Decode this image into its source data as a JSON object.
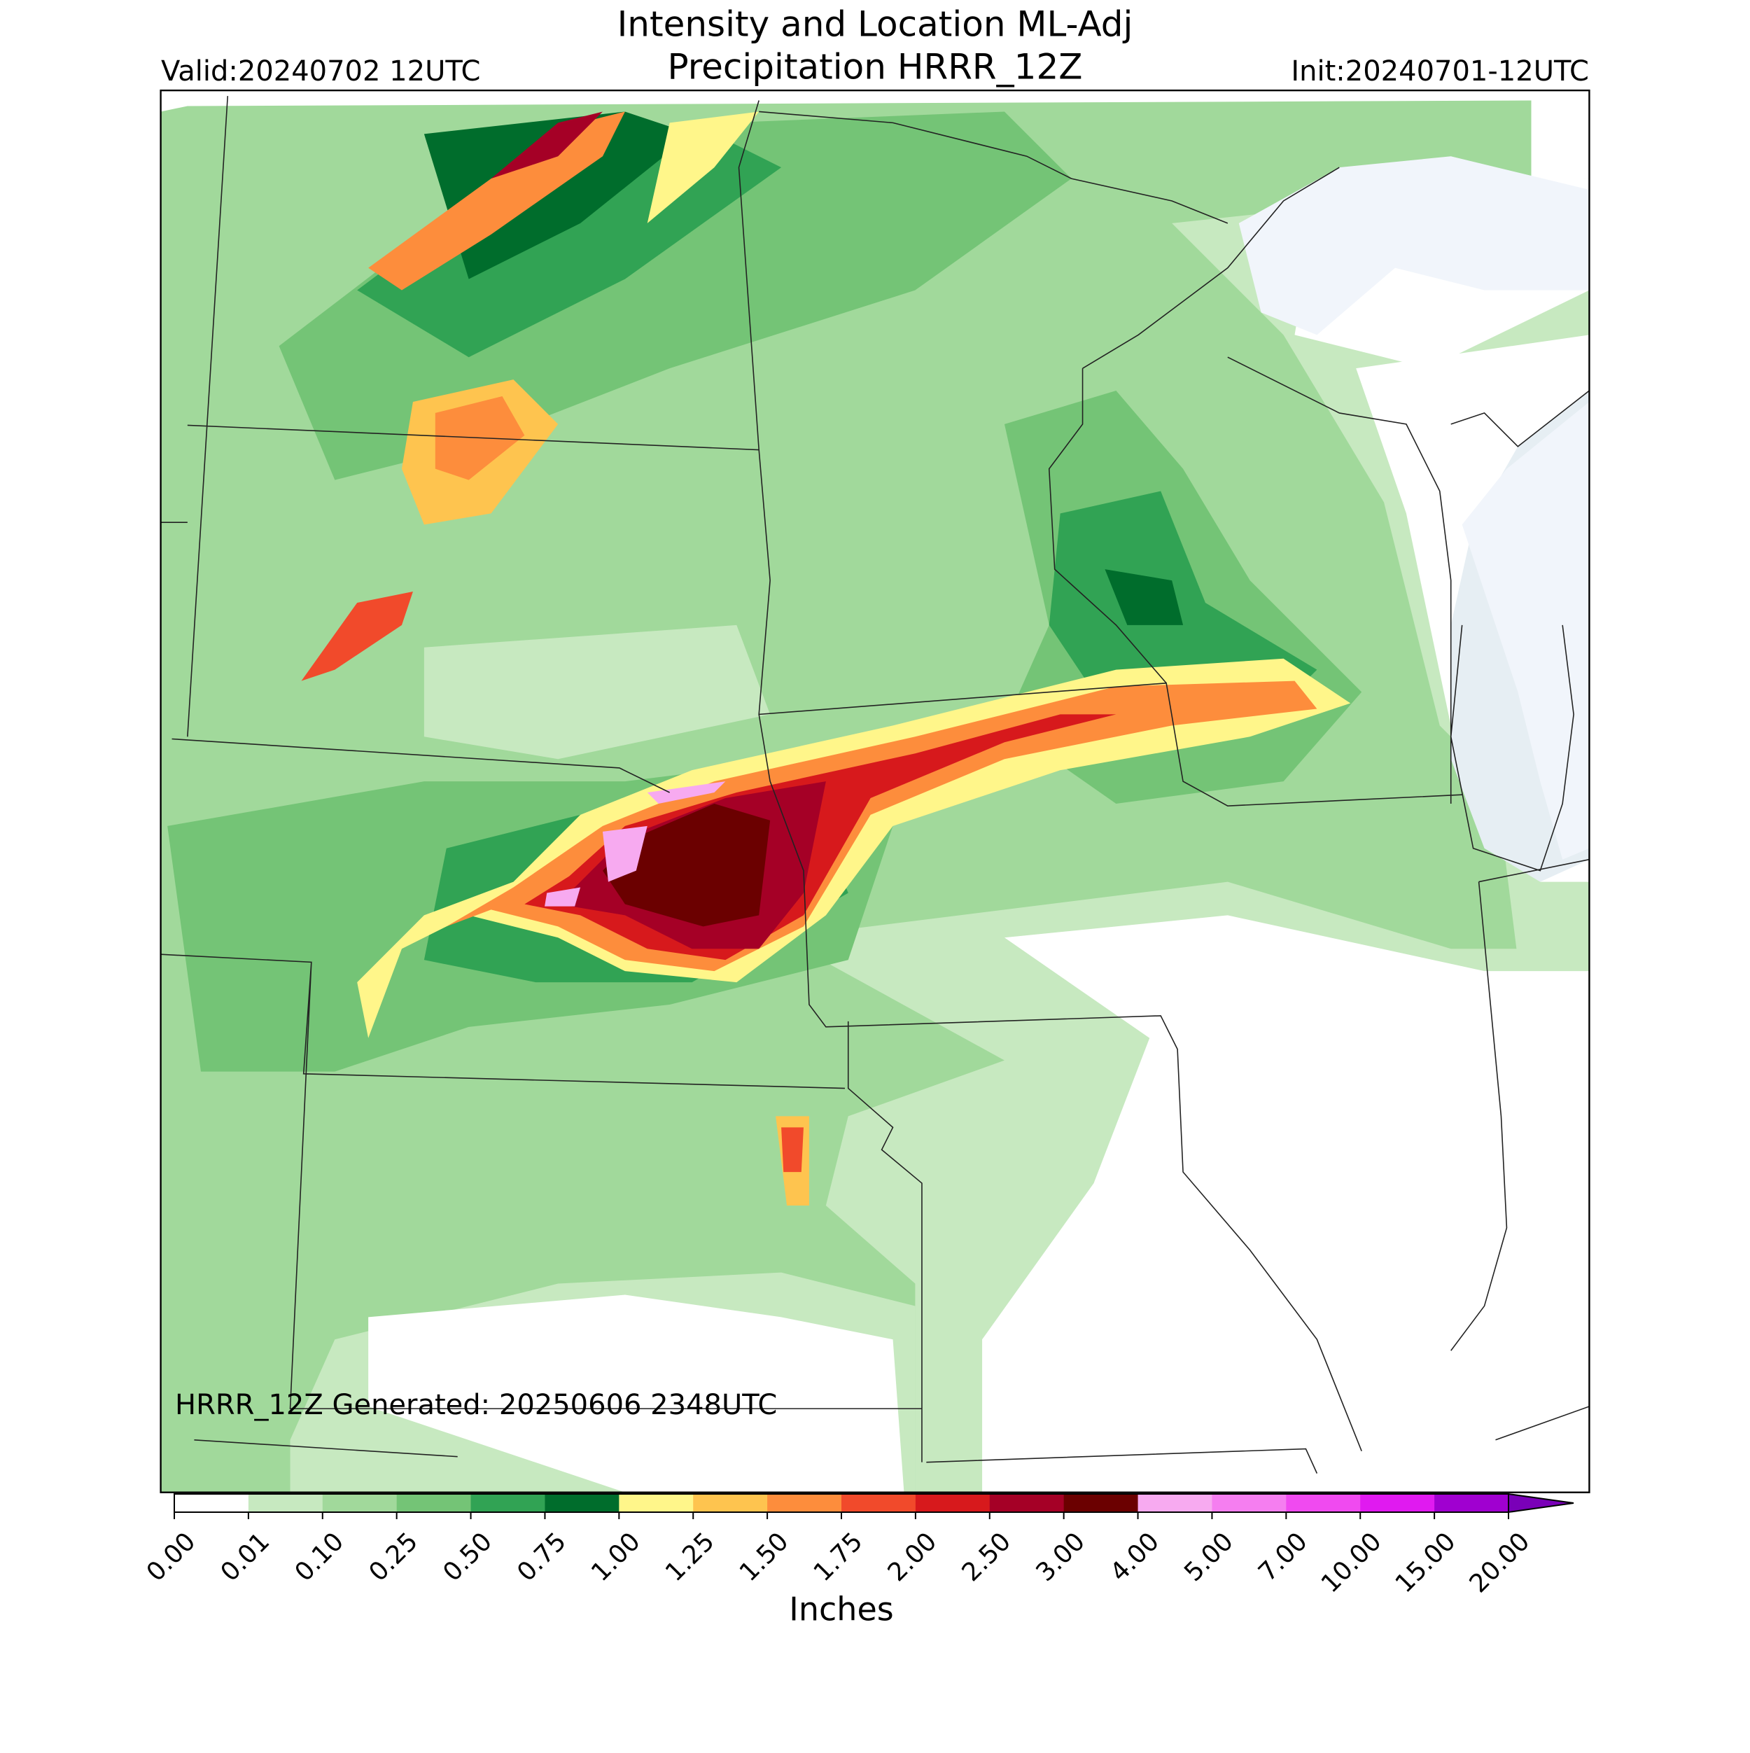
{
  "header": {
    "title_line1": "Intensity and Location ML-Adj",
    "title_line2": "Precipitation HRRR_12Z",
    "valid": "Valid:20240702 12UTC",
    "init": "Init:20240701-12UTC"
  },
  "map": {
    "generated": "HRRR_12Z Generated: 20250606 2348UTC"
  },
  "colorbar": {
    "label": "Inches",
    "ticks": [
      {
        "value": 0,
        "label": "0.00"
      },
      {
        "value": 0.01,
        "label": "0.01"
      },
      {
        "value": 0.1,
        "label": "0.10"
      },
      {
        "value": 0.25,
        "label": "0.25"
      },
      {
        "value": 0.5,
        "label": "0.50"
      },
      {
        "value": 0.75,
        "label": "0.75"
      },
      {
        "value": 1,
        "label": "1.00"
      },
      {
        "value": 1.25,
        "label": "1.25"
      },
      {
        "value": 1.5,
        "label": "1.50"
      },
      {
        "value": 1.75,
        "label": "1.75"
      },
      {
        "value": 2,
        "label": "2.00"
      },
      {
        "value": 2.5,
        "label": "2.50"
      },
      {
        "value": 3,
        "label": "3.00"
      },
      {
        "value": 4,
        "label": "4.00"
      },
      {
        "value": 5,
        "label": "5.00"
      },
      {
        "value": 7,
        "label": "7.00"
      },
      {
        "value": 10,
        "label": "10.00"
      },
      {
        "value": 15,
        "label": "15.00"
      },
      {
        "value": 20,
        "label": "20.00"
      }
    ],
    "colors": [
      "#ffffff",
      "#c7e9c0",
      "#a1d99b",
      "#74c476",
      "#31a354",
      "#006d2c",
      "#fff68a",
      "#fec44f",
      "#fd8d3c",
      "#f14a2b",
      "#d7191c",
      "#a50026",
      "#6b0000",
      "#f7aaf0",
      "#f57ef0",
      "#f04af0",
      "#e01af0",
      "#a000d0"
    ],
    "extend_color": "#7a00b8"
  }
}
